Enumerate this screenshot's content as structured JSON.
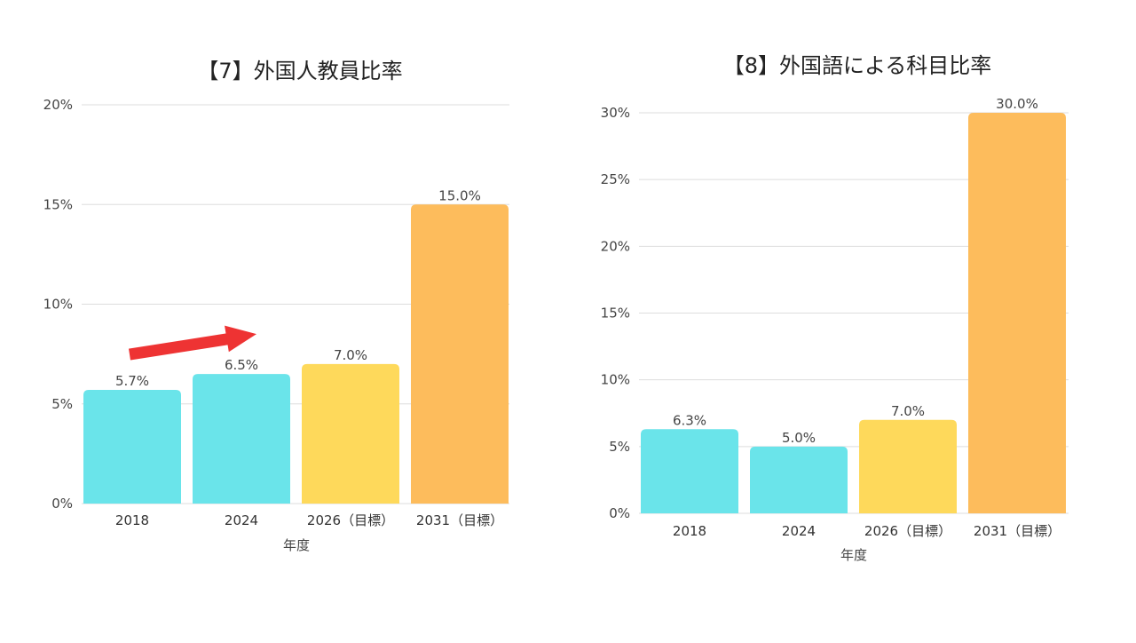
{
  "chart_data": [
    {
      "type": "bar",
      "title": "【7】外国人教員比率",
      "xlabel": "年度",
      "ylabel": "",
      "categories": [
        "2018",
        "2024",
        "2026（目標）",
        "2031（目標）"
      ],
      "values": [
        5.7,
        6.5,
        7.0,
        15.0
      ],
      "value_labels": [
        "5.7%",
        "6.5%",
        "7.0%",
        "15.0%"
      ],
      "bar_colors": [
        "#6ae4ea",
        "#6ae4ea",
        "#fed95b",
        "#fdbc5c"
      ],
      "yticks": [
        0,
        5,
        10,
        15,
        20
      ],
      "ytick_labels": [
        "0%",
        "5%",
        "10%",
        "15%",
        "20%"
      ],
      "ylim": [
        0,
        20
      ],
      "grid": true,
      "annotation": {
        "type": "arrow",
        "from_category": "2018",
        "to_category": "2024",
        "color": "#ee3333"
      }
    },
    {
      "type": "bar",
      "title": "【8】外国語による科目比率",
      "xlabel": "年度",
      "ylabel": "",
      "categories": [
        "2018",
        "2024",
        "2026（目標）",
        "2031（目標）"
      ],
      "values": [
        6.3,
        5.0,
        7.0,
        30.0
      ],
      "value_labels": [
        "6.3%",
        "5.0%",
        "7.0%",
        "30.0%"
      ],
      "bar_colors": [
        "#6ae4ea",
        "#6ae4ea",
        "#fed95b",
        "#fdbc5c"
      ],
      "yticks": [
        0,
        5,
        10,
        15,
        20,
        25,
        30
      ],
      "ytick_labels": [
        "0%",
        "5%",
        "10%",
        "15%",
        "20%",
        "25%",
        "30%"
      ],
      "ylim": [
        0,
        30
      ],
      "grid": true
    }
  ]
}
